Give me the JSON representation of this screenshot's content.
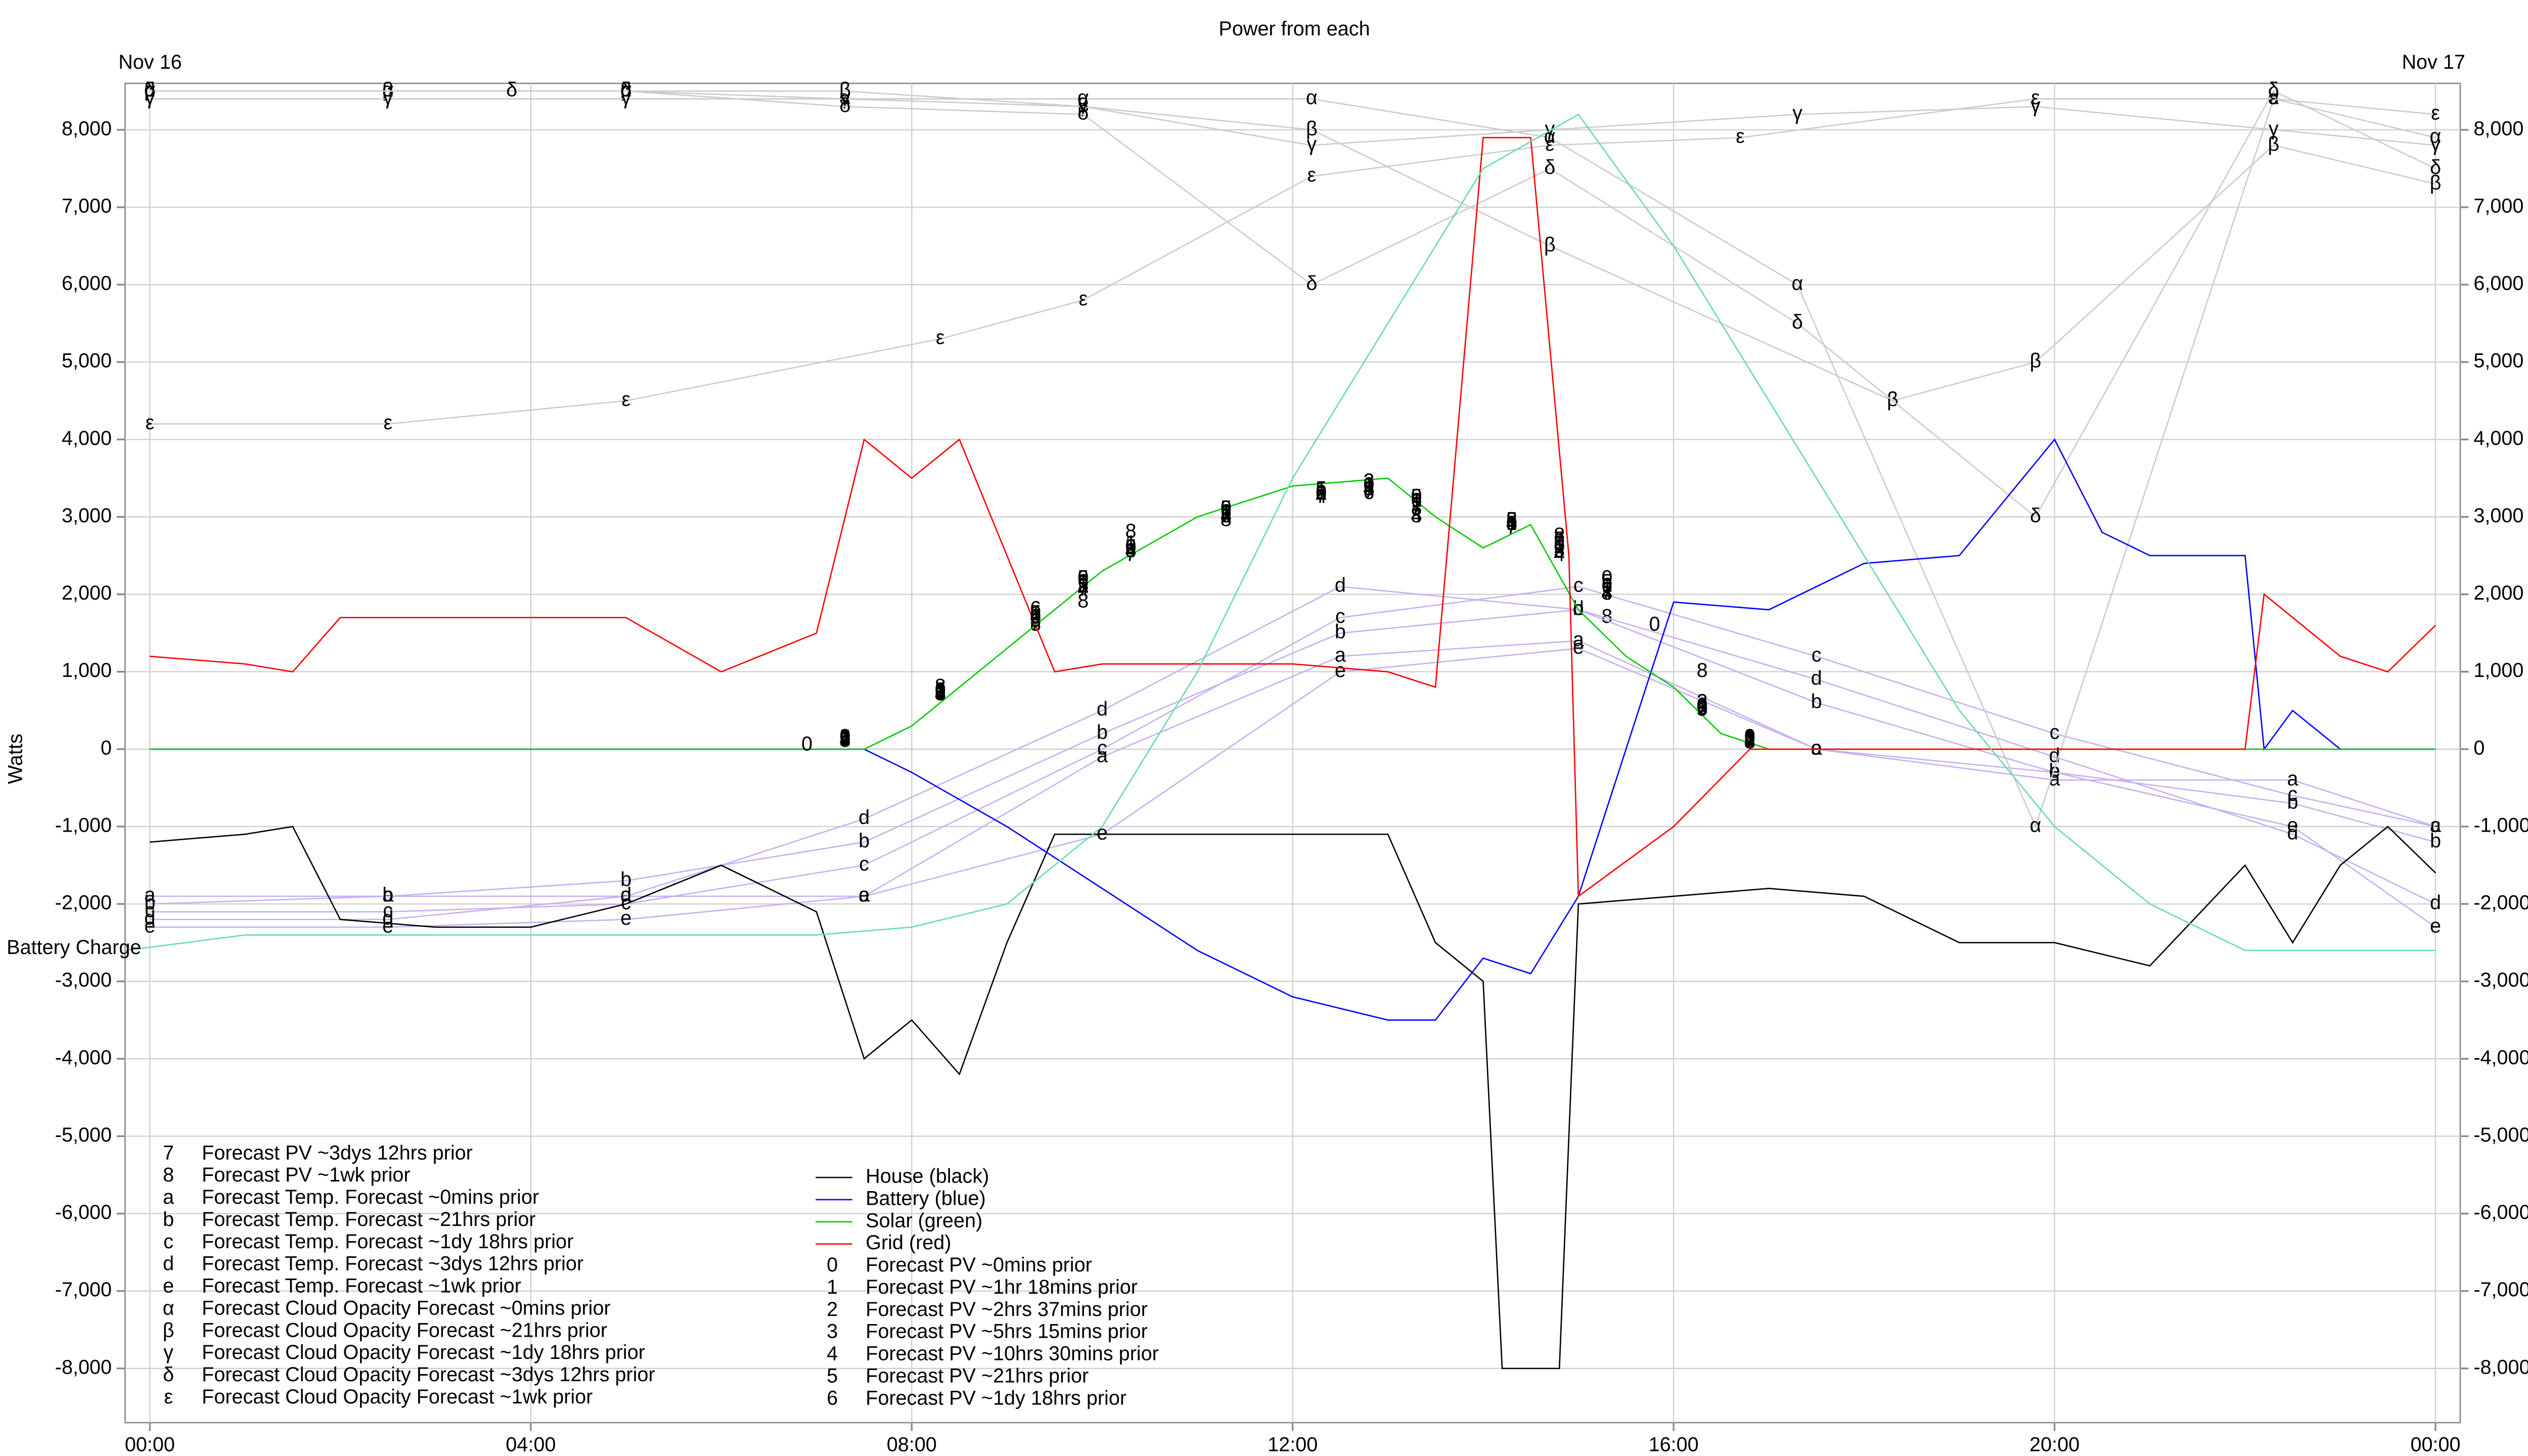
{
  "chart_data": {
    "type": "line",
    "title": "Power from each",
    "ylabel": "Watts",
    "date_labels": [
      "Nov 16",
      "Nov 17"
    ],
    "xlim": [
      -0.26,
      24.26
    ],
    "ylim": [
      -8700,
      8600
    ],
    "grid": true,
    "xticks": [
      {
        "value": 0,
        "label": "00:00"
      },
      {
        "value": 4,
        "label": "04:00"
      },
      {
        "value": 8,
        "label": "08:00"
      },
      {
        "value": 12,
        "label": "12:00"
      },
      {
        "value": 16,
        "label": "16:00"
      },
      {
        "value": 20,
        "label": "20:00"
      },
      {
        "value": 24,
        "label": "00:00"
      }
    ],
    "yticks": [
      {
        "value": -8000,
        "label": "-8,000"
      },
      {
        "value": -7000,
        "label": "-7,000"
      },
      {
        "value": -6000,
        "label": "-6,000"
      },
      {
        "value": -5000,
        "label": "-5,000"
      },
      {
        "value": -4000,
        "label": "-4,000"
      },
      {
        "value": -3000,
        "label": "-3,000"
      },
      {
        "value": -2000,
        "label": "-2,000"
      },
      {
        "value": -1000,
        "label": "-1,000"
      },
      0,
      {
        "value": 1000,
        "label": "1,000"
      },
      {
        "value": 2000,
        "label": "2,000"
      },
      {
        "value": 3000,
        "label": "3,000"
      },
      {
        "value": 4000,
        "label": "4,000"
      },
      {
        "value": 5000,
        "label": "5,000"
      },
      {
        "value": 6000,
        "label": "6,000"
      },
      {
        "value": 7000,
        "label": "7,000"
      },
      {
        "value": 8000,
        "label": "8,000"
      }
    ],
    "series": [
      {
        "name": "Forecast PV ~3dys 12hrs prior",
        "marker": "7",
        "color": "#000000",
        "line": false,
        "x": [
          7.3,
          8.3,
          9.3,
          9.8,
          10.3,
          11.3,
          12.3,
          12.8,
          13.3,
          14.3,
          14.8,
          15.3,
          16.3,
          16.8
        ],
        "values": [
          100,
          700,
          1600,
          2050,
          2500,
          3000,
          3250,
          3300,
          3100,
          2850,
          2700,
          2000,
          500,
          110
        ]
      },
      {
        "name": "Forecast PV ~1wk prior",
        "marker": "8",
        "color": "#000000",
        "line": false,
        "x": [
          7.3,
          8.3,
          9.3,
          9.8,
          10.3,
          11.3,
          12.3,
          12.8,
          13.3,
          14.3,
          14.8,
          15.3,
          16.3,
          16.8
        ],
        "values": [
          100,
          800,
          1600,
          1900,
          2800,
          2950,
          3300,
          3350,
          3000,
          2950,
          2750,
          1700,
          1000,
          140
        ]
      },
      {
        "name": "Forecast Temp. Forecast ~0mins prior",
        "marker": "a",
        "color": "#c8b0f0",
        "line": true,
        "x": [
          0,
          2.5,
          5,
          7.5,
          10,
          12.5,
          15,
          17.5,
          20,
          22.5,
          24
        ],
        "values": [
          -1900,
          -1900,
          -1900,
          -1900,
          -100,
          1200,
          1400,
          0,
          -400,
          -400,
          -1000
        ]
      },
      {
        "name": "Forecast Temp. Forecast ~21hrs prior",
        "marker": "b",
        "color": "#c8b0f0",
        "line": true,
        "x": [
          0,
          2.5,
          5,
          7.5,
          10,
          12.5,
          15,
          17.5,
          20,
          22.5,
          24
        ],
        "values": [
          -2000,
          -1900,
          -1700,
          -1200,
          200,
          1500,
          1800,
          600,
          -300,
          -700,
          -1200
        ]
      },
      {
        "name": "Forecast Temp. Forecast ~1dy 18hrs prior",
        "marker": "c",
        "color": "#c8b0f0",
        "line": true,
        "x": [
          0,
          2.5,
          5,
          7.5,
          10,
          12.5,
          15,
          17.5,
          20,
          22.5,
          24
        ],
        "values": [
          -2100,
          -2100,
          -2000,
          -1500,
          0,
          1700,
          2100,
          1200,
          200,
          -600,
          -1000
        ]
      },
      {
        "name": "Forecast Temp. Forecast ~3dys 12hrs prior",
        "marker": "d",
        "color": "#c8b0f0",
        "line": true,
        "x": [
          0,
          2.5,
          5,
          7.5,
          10,
          12.5,
          15,
          17.5,
          20,
          22.5,
          24
        ],
        "values": [
          -2200,
          -2200,
          -1900,
          -900,
          500,
          2100,
          1800,
          900,
          -100,
          -1100,
          -2000
        ]
      },
      {
        "name": "Forecast Temp. Forecast ~1wk prior",
        "marker": "e",
        "color": "#c8b0f0",
        "line": true,
        "x": [
          0,
          2.5,
          5,
          7.5,
          10,
          12.5,
          15,
          17.5,
          20,
          22.5,
          24
        ],
        "values": [
          -2300,
          -2300,
          -2200,
          -1900,
          -1100,
          1000,
          1300,
          0,
          -300,
          -1000,
          -2300
        ]
      },
      {
        "name": "Forecast Cloud Opacity Forecast ~0mins prior",
        "marker": "α",
        "color": "#cccccc",
        "line": true,
        "x": [
          0,
          2.5,
          5,
          7.3,
          9.8,
          12.2,
          14.7,
          17.3,
          19.8,
          22.3,
          24
        ],
        "values": [
          8500,
          8500,
          8500,
          8400,
          8400,
          8400,
          7900,
          6000,
          -1000,
          8400,
          7900
        ]
      },
      {
        "name": "Forecast Cloud Opacity Forecast ~21hrs prior",
        "marker": "β",
        "color": "#cccccc",
        "line": true,
        "x": [
          0,
          2.5,
          5,
          7.3,
          9.8,
          12.2,
          14.7,
          18.3,
          19.8,
          22.3,
          24
        ],
        "values": [
          8500,
          8500,
          8500,
          8500,
          8300,
          8000,
          6500,
          4500,
          5000,
          7800,
          7300
        ]
      },
      {
        "name": "Forecast Cloud Opacity Forecast ~1dy 18hrs prior",
        "marker": "γ",
        "color": "#cccccc",
        "line": true,
        "x": [
          0,
          2.5,
          5,
          7.3,
          9.8,
          12.2,
          14.7,
          17.3,
          19.8,
          22.3,
          24
        ],
        "values": [
          8400,
          8400,
          8400,
          8400,
          8300,
          7800,
          8000,
          8200,
          8300,
          8000,
          7800
        ]
      },
      {
        "name": "Forecast Cloud Opacity Forecast ~3dys 12hrs prior",
        "marker": "δ",
        "color": "#cccccc",
        "line": true,
        "x": [
          0,
          3.8,
          5,
          7.3,
          9.8,
          12.2,
          14.7,
          17.3,
          19.8,
          22.3,
          24
        ],
        "values": [
          8500,
          8500,
          8500,
          8300,
          8200,
          6000,
          7500,
          5500,
          3000,
          8500,
          7500
        ]
      },
      {
        "name": "Forecast Cloud Opacity Forecast ~1wk prior",
        "marker": "ε",
        "color": "#cccccc",
        "line": true,
        "x": [
          0,
          2.5,
          5,
          8.3,
          9.8,
          12.2,
          14.7,
          16.7,
          19.8,
          22.3,
          24
        ],
        "values": [
          4200,
          4200,
          4500,
          5300,
          5800,
          7400,
          7800,
          7900,
          8400,
          8400,
          8200
        ]
      },
      {
        "name": "House (black)",
        "color": "#000000",
        "line": true,
        "x": [
          0,
          1,
          1.5,
          2,
          3,
          4,
          5,
          6,
          7,
          7.5,
          8,
          8.5,
          9,
          9.5,
          10,
          11,
          12,
          13,
          13.5,
          14,
          14.2,
          14.8,
          15,
          16,
          17,
          18,
          19,
          20,
          21,
          22,
          22.5,
          23,
          23.5,
          24
        ],
        "values": [
          -1200,
          -1100,
          -1000,
          -2200,
          -2300,
          -2300,
          -2000,
          -1500,
          -2100,
          -4000,
          -3500,
          -4200,
          -2500,
          -1100,
          -1100,
          -1100,
          -1100,
          -1100,
          -2500,
          -3000,
          -8000,
          -8000,
          -2000,
          -1900,
          -1800,
          -1900,
          -2500,
          -2500,
          -2800,
          -1500,
          -2500,
          -1500,
          -1000,
          -1600
        ]
      },
      {
        "name": "Battery (blue)",
        "color": "#0000ff",
        "line": true,
        "x": [
          0,
          7.5,
          8,
          9,
          10,
          11,
          12,
          13,
          13.5,
          14,
          14.5,
          15,
          16,
          17,
          18,
          19,
          20,
          20.5,
          21,
          22,
          22.2,
          22.5,
          23,
          24
        ],
        "values": [
          0,
          0,
          -300,
          -1000,
          -1800,
          -2600,
          -3200,
          -3500,
          -3500,
          -2700,
          -2900,
          -1900,
          1900,
          1800,
          2400,
          2500,
          4000,
          2800,
          2500,
          2500,
          0,
          500,
          0,
          0
        ]
      },
      {
        "name": "Solar (green)",
        "color": "#00cc00",
        "line": true,
        "x": [
          0,
          7.5,
          8,
          9,
          10,
          11,
          12,
          13,
          13.5,
          14,
          14.5,
          15,
          15.5,
          16,
          16.5,
          17,
          24
        ],
        "values": [
          0,
          0,
          300,
          1300,
          2300,
          3000,
          3400,
          3500,
          3000,
          2600,
          2900,
          1800,
          1200,
          800,
          200,
          0,
          0
        ]
      },
      {
        "name": "Grid (red)",
        "color": "#ff0000",
        "line": true,
        "x": [
          0,
          1,
          1.5,
          2,
          3,
          4,
          5,
          6,
          7,
          7.5,
          8,
          8.5,
          9,
          9.5,
          10,
          11,
          12,
          13,
          13.5,
          14,
          14.5,
          14.9,
          15,
          16,
          16.8,
          22,
          22.2,
          23,
          23.5,
          24
        ],
        "values": [
          1200,
          1100,
          1000,
          1700,
          1700,
          1700,
          1700,
          1000,
          1500,
          4000,
          3500,
          4000,
          2500,
          1000,
          1100,
          1100,
          1100,
          1000,
          800,
          7900,
          7900,
          2500,
          -1900,
          -1000,
          0,
          0,
          2000,
          1200,
          1000,
          1600
        ]
      },
      {
        "name": "Forecast PV ~0mins prior",
        "marker": "0",
        "color": "#000000",
        "line": false,
        "x": [
          6.9,
          7.3,
          8.3,
          9.3,
          9.8,
          10.3,
          11.3,
          12.3,
          12.8,
          13.3,
          14.3,
          14.8,
          15.3,
          15.8,
          16.3,
          16.8
        ],
        "values": [
          50,
          150,
          750,
          1700,
          2200,
          2600,
          3100,
          3300,
          3400,
          3250,
          2900,
          2600,
          2200,
          1600,
          550,
          150
        ]
      },
      {
        "name": "Forecast PV ~1hr 18mins prior",
        "marker": "1",
        "color": "#000000",
        "line": false,
        "x": [
          7.3,
          8.3,
          9.3,
          9.8,
          10.3,
          11.3,
          12.3,
          12.8,
          13.3,
          14.3,
          14.8,
          15.3,
          16.3,
          16.8
        ],
        "values": [
          130,
          750,
          1750,
          2150,
          2650,
          3050,
          3350,
          3400,
          3200,
          2900,
          2600,
          2100,
          550,
          120
        ]
      },
      {
        "name": "Forecast PV ~2hrs 37mins prior",
        "marker": "2",
        "color": "#000000",
        "line": false,
        "x": [
          7.3,
          8.3,
          9.3,
          9.8,
          10.3,
          11.3,
          12.3,
          12.8,
          13.3,
          14.3,
          14.8,
          15.3,
          16.3,
          16.8
        ],
        "values": [
          120,
          720,
          1700,
          2100,
          2600,
          3050,
          3300,
          3450,
          3150,
          2950,
          2600,
          2050,
          600,
          100
        ]
      },
      {
        "name": "Forecast PV ~5hrs 15mins prior",
        "marker": "3",
        "color": "#000000",
        "line": false,
        "x": [
          7.3,
          8.3,
          9.3,
          9.8,
          10.3,
          11.3,
          12.3,
          12.8,
          13.3,
          14.3,
          14.8,
          15.3,
          16.3,
          16.8
        ],
        "values": [
          100,
          700,
          1650,
          2100,
          2550,
          3000,
          3300,
          3350,
          3100,
          2900,
          2550,
          2000,
          600,
          80
        ]
      },
      {
        "name": "Forecast PV ~10hrs 30mins prior",
        "marker": "4",
        "color": "#000000",
        "line": false,
        "x": [
          7.3,
          8.3,
          9.3,
          9.8,
          10.3,
          11.3,
          12.3,
          12.8,
          13.3,
          14.3,
          14.8,
          15.3,
          16.3,
          16.8
        ],
        "values": [
          110,
          700,
          1700,
          2050,
          2550,
          3000,
          3250,
          3350,
          3000,
          2900,
          2500,
          2000,
          550,
          90
        ]
      },
      {
        "name": "Forecast PV ~21hrs prior",
        "marker": "5",
        "color": "#000000",
        "line": false,
        "x": [
          7.3,
          8.3,
          9.3,
          9.8,
          10.3,
          11.3,
          12.3,
          12.8,
          13.3,
          14.3,
          14.8,
          15.3,
          16.3,
          16.8
        ],
        "values": [
          140,
          750,
          1750,
          2200,
          2600,
          3100,
          3350,
          3350,
          3250,
          2950,
          2700,
          2150,
          500,
          130
        ]
      },
      {
        "name": "Forecast PV ~1dy 18hrs prior",
        "marker": "6",
        "color": "#000000",
        "line": false,
        "x": [
          7.3,
          8.3,
          9.3,
          9.8,
          10.3,
          11.3,
          12.3,
          12.8,
          13.3,
          14.3,
          14.8,
          15.3,
          16.3,
          16.8
        ],
        "values": [
          130,
          720,
          1800,
          2150,
          2600,
          3050,
          3300,
          3300,
          3200,
          2900,
          2650,
          2100,
          520,
          140
        ]
      },
      {
        "name": "Battery Charge",
        "color": "#66ddaa",
        "line": true,
        "x": [
          -0.26,
          1,
          7,
          8,
          9,
          10,
          11,
          12,
          13,
          14,
          15,
          16,
          17,
          18,
          19,
          20,
          21,
          22,
          24
        ],
        "values": [
          -2600,
          -2400,
          -2400,
          -2300,
          -2000,
          -1000,
          1000,
          3500,
          5500,
          7500,
          8200,
          6500,
          4500,
          2500,
          500,
          -1000,
          -2000,
          -2600,
          -2600
        ]
      }
    ]
  }
}
